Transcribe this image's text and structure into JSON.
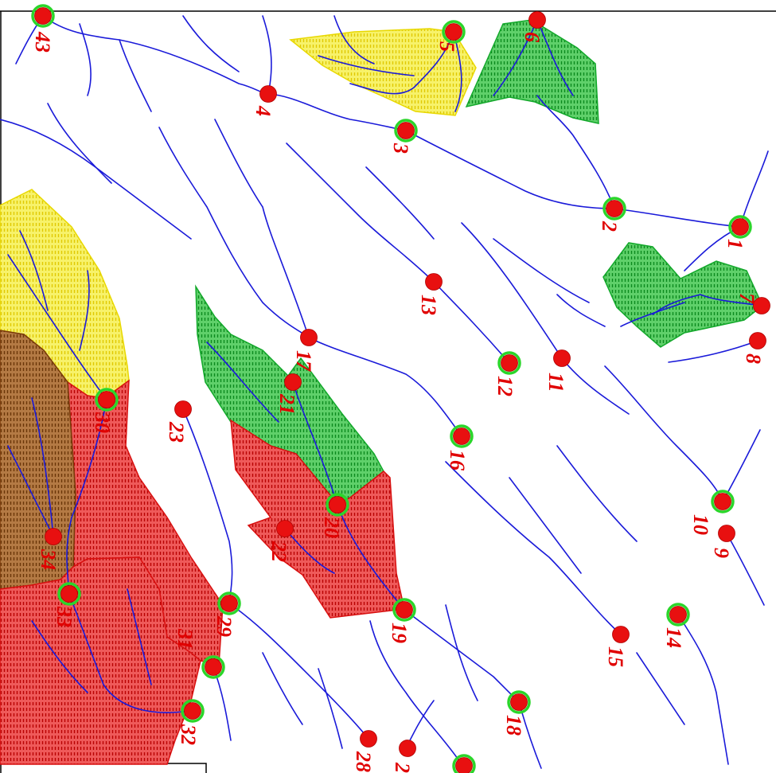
{
  "map": {
    "colors": {
      "stream": "#1a1ad9",
      "point": "#e81010",
      "ring": "#2ad62a",
      "label": "#e00000",
      "zone_yellow": "#f2ec3a",
      "zone_green": "#1fae2d",
      "zone_red": "#e01616",
      "zone_brown": "#8b4a12"
    },
    "zones": [
      {
        "id": "z5",
        "color": "yellow",
        "outlet": "5"
      },
      {
        "id": "z6",
        "color": "green",
        "outlet": "6"
      },
      {
        "id": "z7",
        "color": "green",
        "outlet": "7"
      },
      {
        "id": "z30",
        "color": "yellow",
        "outlet": "30"
      },
      {
        "id": "z21",
        "color": "green",
        "outlet": "21"
      },
      {
        "id": "z20",
        "color": "red",
        "outlet": "20"
      },
      {
        "id": "z34",
        "color": "brown",
        "outlet": "34"
      },
      {
        "id": "z31",
        "color": "red",
        "outlet": "31"
      }
    ],
    "points": [
      {
        "label": "43",
        "ring": true
      },
      {
        "label": "5",
        "ring": true
      },
      {
        "label": "6",
        "ring": false
      },
      {
        "label": "4",
        "ring": false
      },
      {
        "label": "3",
        "ring": true
      },
      {
        "label": "2",
        "ring": true
      },
      {
        "label": "1",
        "ring": true
      },
      {
        "label": "7",
        "ring": false
      },
      {
        "label": "8",
        "ring": false
      },
      {
        "label": "13",
        "ring": false
      },
      {
        "label": "12",
        "ring": true
      },
      {
        "label": "11",
        "ring": false
      },
      {
        "label": "17",
        "ring": false
      },
      {
        "label": "21",
        "ring": false
      },
      {
        "label": "16",
        "ring": true
      },
      {
        "label": "30",
        "ring": true
      },
      {
        "label": "23",
        "ring": false
      },
      {
        "label": "20",
        "ring": true
      },
      {
        "label": "22",
        "ring": false
      },
      {
        "label": "34",
        "ring": false
      },
      {
        "label": "33",
        "ring": true
      },
      {
        "label": "29",
        "ring": true
      },
      {
        "label": "31",
        "ring": true
      },
      {
        "label": "32",
        "ring": true
      },
      {
        "label": "19",
        "ring": true
      },
      {
        "label": "10",
        "ring": true
      },
      {
        "label": "9",
        "ring": false
      },
      {
        "label": "14",
        "ring": true
      },
      {
        "label": "15",
        "ring": false
      },
      {
        "label": "18",
        "ring": true
      },
      {
        "label": "28",
        "ring": false
      },
      {
        "label": "2",
        "ring": false
      },
      {
        "label": "",
        "ring": true
      }
    ]
  }
}
